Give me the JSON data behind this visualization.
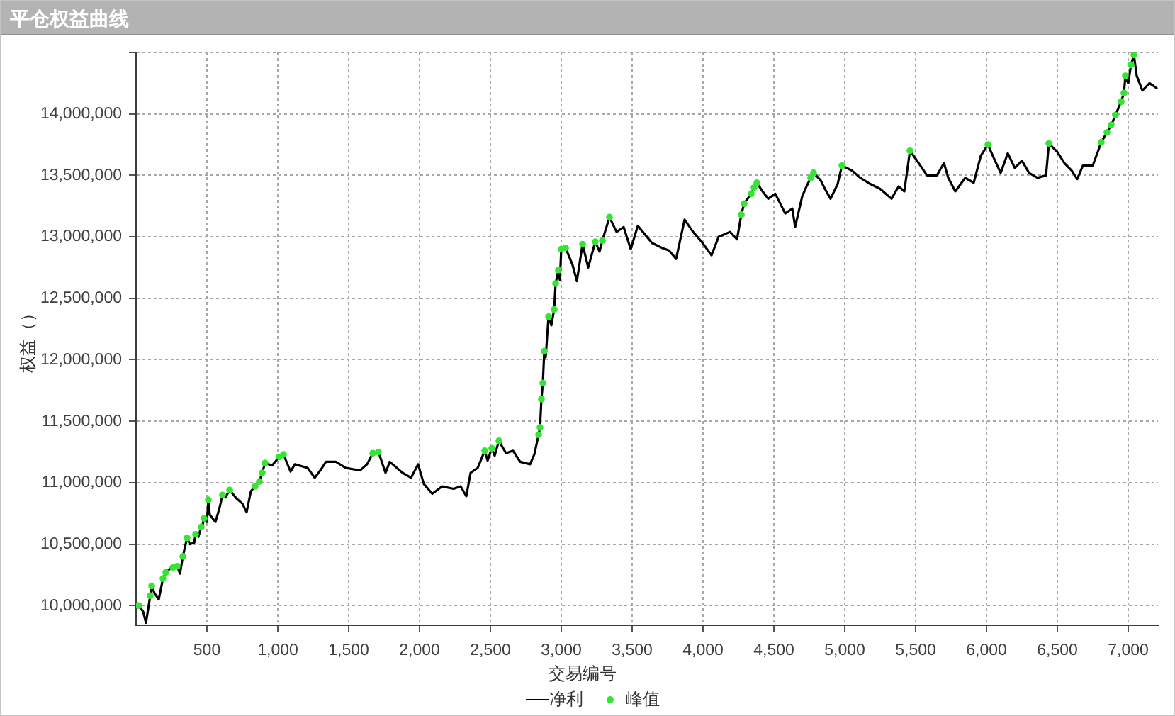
{
  "chart_data": {
    "type": "line",
    "title": "平仓权益曲线",
    "xlabel": "交易编号",
    "ylabel": "权益（）",
    "xlim": [
      0,
      7210
    ],
    "ylim": [
      9840000,
      14500000
    ],
    "xticks": [
      500,
      {
        "value": 1000,
        "label": "1,000"
      },
      {
        "value": 1500,
        "label": "1,500"
      },
      {
        "value": 2000,
        "label": "2,000"
      },
      {
        "value": 2500,
        "label": "2,500"
      },
      {
        "value": 3000,
        "label": "3,000"
      },
      {
        "value": 3500,
        "label": "3,500"
      },
      {
        "value": 4000,
        "label": "4,000"
      },
      {
        "value": 4500,
        "label": "4,500"
      },
      {
        "value": 5000,
        "label": "5,000"
      },
      {
        "value": 5500,
        "label": "5,500"
      },
      {
        "value": 6000,
        "label": "6,000"
      },
      {
        "value": 6500,
        "label": "6,500"
      },
      {
        "value": 7000,
        "label": "7,000"
      }
    ],
    "yticks": [
      {
        "value": 10000000,
        "label": "10,000,000"
      },
      {
        "value": 10500000,
        "label": "10,500,000"
      },
      {
        "value": 11000000,
        "label": "11,000,000"
      },
      {
        "value": 11500000,
        "label": "11,500,000"
      },
      {
        "value": 12000000,
        "label": "12,000,000"
      },
      {
        "value": 12500000,
        "label": "12,500,000"
      },
      {
        "value": 13000000,
        "label": "13,000,000"
      },
      {
        "value": 13500000,
        "label": "13,500,000"
      },
      {
        "value": 14000000,
        "label": "14,000,000"
      },
      {
        "value": 14500000,
        "label": null
      }
    ],
    "grid": true,
    "legend": "bottom",
    "series": [
      {
        "name": "净利",
        "color": "#000000",
        "x": [
          0,
          20,
          50,
          70,
          100,
          110,
          130,
          160,
          190,
          210,
          240,
          260,
          290,
          310,
          330,
          360,
          380,
          410,
          420,
          440,
          460,
          470,
          480,
          500,
          510,
          520,
          560,
          590,
          610,
          630,
          660,
          710,
          750,
          780,
          810,
          840,
          870,
          890,
          910,
          960,
          1010,
          1040,
          1090,
          1120,
          1210,
          1260,
          1300,
          1340,
          1410,
          1480,
          1580,
          1630,
          1670,
          1710,
          1760,
          1790,
          1880,
          1940,
          1990,
          2030,
          2090,
          2160,
          2240,
          2290,
          2330,
          2360,
          2410,
          2460,
          2480,
          2510,
          2530,
          2560,
          2610,
          2660,
          2710,
          2780,
          2810,
          2840,
          2850,
          2860,
          2870,
          2880,
          2890,
          2910,
          2930,
          2950,
          2960,
          2980,
          2990,
          3000,
          3030,
          3080,
          3110,
          3150,
          3190,
          3240,
          3270,
          3290,
          3340,
          3390,
          3440,
          3490,
          3540,
          3590,
          3640,
          3710,
          3760,
          3810,
          3870,
          3930,
          3990,
          4060,
          4110,
          4190,
          4240,
          4270,
          4290,
          4340,
          4360,
          4380,
          4420,
          4460,
          4510,
          4580,
          4630,
          4650,
          4700,
          4730,
          4760,
          4780,
          4830,
          4860,
          4900,
          4950,
          4980,
          5050,
          5110,
          5180,
          5250,
          5330,
          5380,
          5420,
          5460,
          5510,
          5580,
          5650,
          5700,
          5730,
          5780,
          5850,
          5910,
          5960,
          6010,
          6060,
          6100,
          6150,
          6200,
          6250,
          6300,
          6360,
          6420,
          6440,
          6500,
          6550,
          6600,
          6640,
          6680,
          6750,
          6810,
          6850,
          6880,
          6910,
          6950,
          6970,
          6980,
          7000,
          7020,
          7040,
          7060,
          7100,
          7150,
          7200
        ],
        "values": [
          9990000,
          10000000,
          9950000,
          9860000,
          10080000,
          10160000,
          10100000,
          10050000,
          10220000,
          10270000,
          10300000,
          10310000,
          10320000,
          10260000,
          10400000,
          10550000,
          10500000,
          10510000,
          10580000,
          10560000,
          10640000,
          10660000,
          10710000,
          10680000,
          10860000,
          10740000,
          10680000,
          10800000,
          10900000,
          10880000,
          10940000,
          10870000,
          10830000,
          10760000,
          10930000,
          10970000,
          11010000,
          11080000,
          11160000,
          11140000,
          11210000,
          11230000,
          11090000,
          11150000,
          11120000,
          11040000,
          11100000,
          11170000,
          11170000,
          11120000,
          11100000,
          11150000,
          11240000,
          11250000,
          11080000,
          11170000,
          11080000,
          11040000,
          11150000,
          10990000,
          10910000,
          10970000,
          10950000,
          10970000,
          10890000,
          11080000,
          11120000,
          11260000,
          11180000,
          11280000,
          11220000,
          11340000,
          11240000,
          11260000,
          11170000,
          11150000,
          11230000,
          11390000,
          11450000,
          11680000,
          11810000,
          12070000,
          12020000,
          12350000,
          12280000,
          12410000,
          12620000,
          12730000,
          12650000,
          12900000,
          12910000,
          12770000,
          12640000,
          12940000,
          12750000,
          12960000,
          12880000,
          12970000,
          13160000,
          13040000,
          13080000,
          12900000,
          13090000,
          13020000,
          12950000,
          12910000,
          12890000,
          12820000,
          13140000,
          13040000,
          12960000,
          12850000,
          13000000,
          13040000,
          12980000,
          13180000,
          13270000,
          13350000,
          13400000,
          13440000,
          13370000,
          13310000,
          13350000,
          13190000,
          13230000,
          13080000,
          13330000,
          13410000,
          13480000,
          13520000,
          13460000,
          13390000,
          13310000,
          13430000,
          13580000,
          13540000,
          13480000,
          13430000,
          13390000,
          13310000,
          13410000,
          13370000,
          13700000,
          13620000,
          13500000,
          13500000,
          13600000,
          13480000,
          13370000,
          13480000,
          13440000,
          13660000,
          13750000,
          13620000,
          13520000,
          13680000,
          13560000,
          13620000,
          13520000,
          13480000,
          13500000,
          13760000,
          13690000,
          13600000,
          13540000,
          13470000,
          13580000,
          13580000,
          13770000,
          13850000,
          13910000,
          13990000,
          14100000,
          14170000,
          14310000,
          14250000,
          14400000,
          14480000,
          14310000,
          14190000,
          14250000,
          14210000
        ]
      },
      {
        "name": "峰值",
        "type": "scatter",
        "marker": "circle",
        "color": "#33e633",
        "x": [
          20,
          100,
          110,
          190,
          210,
          260,
          290,
          330,
          360,
          420,
          460,
          480,
          510,
          610,
          660,
          840,
          870,
          890,
          910,
          1010,
          1040,
          1670,
          1710,
          2460,
          2510,
          2560,
          2840,
          2850,
          2860,
          2870,
          2880,
          2910,
          2950,
          2960,
          2980,
          3000,
          3030,
          3150,
          3240,
          3290,
          3340,
          4270,
          4290,
          4340,
          4360,
          4380,
          4760,
          4780,
          4980,
          5460,
          6010,
          6440,
          6810,
          6850,
          6880,
          6910,
          6950,
          6970,
          6980,
          7020,
          7040
        ],
        "values": [
          10000000,
          10080000,
          10160000,
          10220000,
          10270000,
          10310000,
          10320000,
          10400000,
          10550000,
          10580000,
          10640000,
          10710000,
          10860000,
          10900000,
          10940000,
          10970000,
          11010000,
          11080000,
          11160000,
          11210000,
          11230000,
          11240000,
          11250000,
          11260000,
          11280000,
          11340000,
          11390000,
          11450000,
          11680000,
          11810000,
          12070000,
          12350000,
          12410000,
          12620000,
          12730000,
          12900000,
          12910000,
          12940000,
          12960000,
          12970000,
          13160000,
          13180000,
          13270000,
          13350000,
          13400000,
          13440000,
          13480000,
          13520000,
          13580000,
          13700000,
          13750000,
          13760000,
          13770000,
          13850000,
          13910000,
          13990000,
          14100000,
          14170000,
          14310000,
          14400000,
          14480000
        ]
      }
    ]
  }
}
